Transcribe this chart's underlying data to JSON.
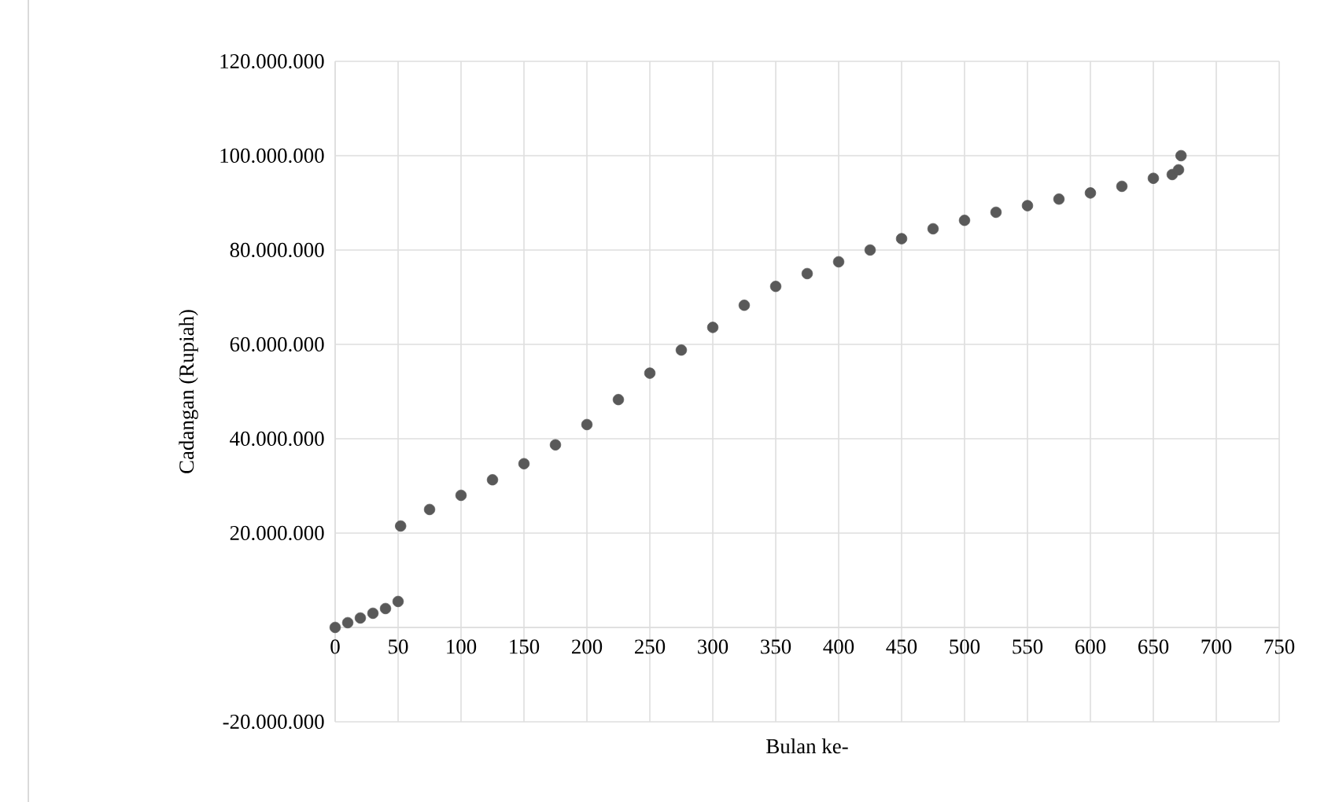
{
  "chart_data": {
    "type": "scatter",
    "xlabel": "Bulan ke-",
    "ylabel": "Cadangan  (Rupiah)",
    "x": [
      0,
      10,
      20,
      30,
      40,
      50,
      52,
      75,
      100,
      125,
      150,
      175,
      200,
      225,
      250,
      275,
      300,
      325,
      350,
      375,
      400,
      425,
      450,
      475,
      500,
      525,
      550,
      575,
      600,
      625,
      650,
      665,
      670,
      672
    ],
    "series": [
      {
        "color": "#595959",
        "values": [
          0,
          1000000,
          2000000,
          3000000,
          4000000,
          5500000,
          21500000,
          25000000,
          28000000,
          31300000,
          34700000,
          38700000,
          43000000,
          48300000,
          53900000,
          58800000,
          63600000,
          68300000,
          72300000,
          75000000,
          77500000,
          80000000,
          82400000,
          84500000,
          86300000,
          88000000,
          89400000,
          90800000,
          92100000,
          93500000,
          95200000,
          96000000,
          97000000,
          100000000
        ]
      }
    ],
    "xlim": [
      0,
      750
    ],
    "ylim": [
      -20000000,
      120000000
    ],
    "xticks": [
      0,
      50,
      100,
      150,
      200,
      250,
      300,
      350,
      400,
      450,
      500,
      550,
      600,
      650,
      700,
      750
    ],
    "yticks": [
      {
        "value": -20000000,
        "label": "-20.000.000"
      },
      {
        "value": 0,
        "label": null
      },
      {
        "value": 20000000,
        "label": "20.000.000"
      },
      {
        "value": 40000000,
        "label": "40.000.000"
      },
      {
        "value": 60000000,
        "label": "60.000.000"
      },
      {
        "value": 80000000,
        "label": "80.000.000"
      },
      {
        "value": 100000000,
        "label": "100.000.000"
      },
      {
        "value": 120000000,
        "label": "120.000.000"
      }
    ],
    "grid": true,
    "marker": "circle"
  }
}
